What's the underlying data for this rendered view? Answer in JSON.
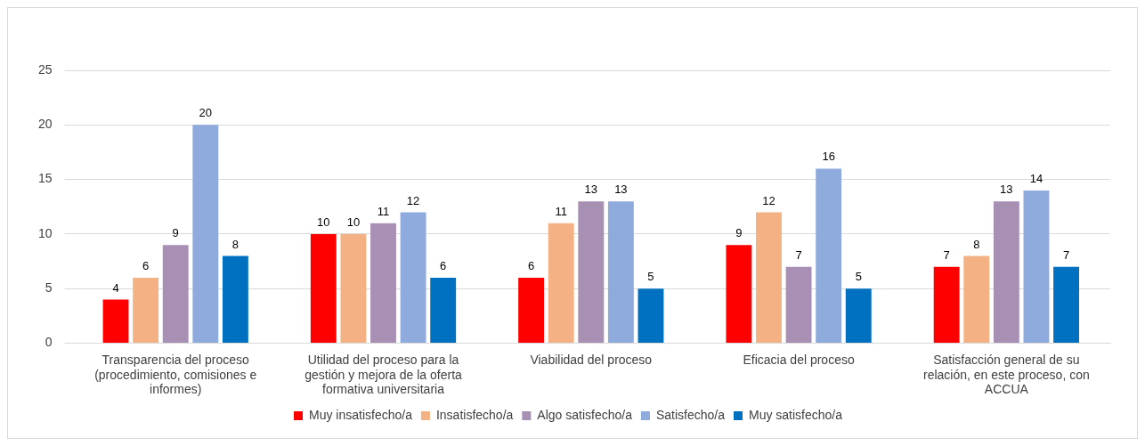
{
  "chart_data": {
    "type": "bar",
    "categories": [
      "Transparencia del proceso (procedimiento, comisiones e informes)",
      "Utilidad del proceso para la gestión y mejora de la oferta formativa universitaria",
      "Viabilidad del proceso",
      "Eficacia del proceso",
      "Satisfacción general de su relación, en este proceso, con ACCUA"
    ],
    "series": [
      {
        "name": "Muy insatisfecho/a",
        "color": "#ff0000",
        "values": [
          4,
          10,
          6,
          9,
          7
        ]
      },
      {
        "name": "Insatisfecho/a",
        "color": "#f4b183",
        "values": [
          6,
          10,
          11,
          12,
          8
        ]
      },
      {
        "name": "Algo satisfecho/a",
        "color": "#a88fb4",
        "values": [
          9,
          11,
          13,
          7,
          13
        ]
      },
      {
        "name": "Satisfecho/a",
        "color": "#8faadc",
        "values": [
          20,
          12,
          13,
          16,
          14
        ]
      },
      {
        "name": "Muy satisfecho/a",
        "color": "#0070c0",
        "values": [
          8,
          6,
          5,
          5,
          7
        ]
      }
    ],
    "ylim": [
      0,
      25
    ],
    "yticks": [
      0,
      5,
      10,
      15,
      20,
      25
    ],
    "grid": "y",
    "legend": "bottom",
    "data_labels": true
  }
}
